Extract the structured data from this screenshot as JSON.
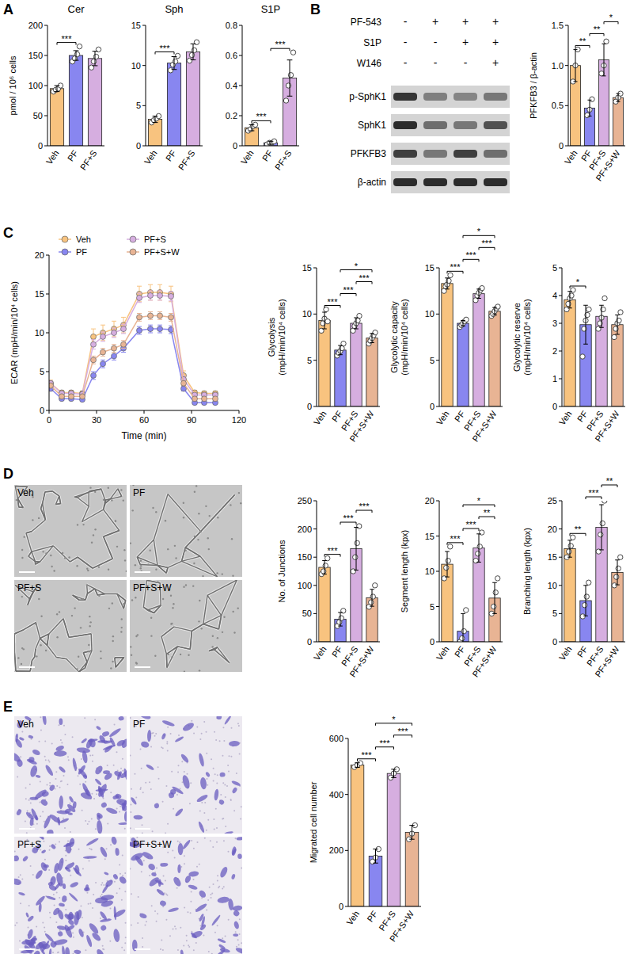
{
  "panel_labels": [
    "A",
    "B",
    "C",
    "D",
    "E"
  ],
  "blot": {
    "treatments": [
      {
        "name": "PF-543",
        "signs": [
          "-",
          "+",
          "+",
          "+"
        ]
      },
      {
        "name": "S1P",
        "signs": [
          "-",
          "-",
          "+",
          "+"
        ]
      },
      {
        "name": "W146",
        "signs": [
          "-",
          "-",
          "-",
          "+"
        ]
      }
    ],
    "bands": [
      "p-SphK1",
      "SphK1",
      "PFKFB3",
      "β-actin"
    ]
  },
  "images": {
    "D": [
      "Veh",
      "PF",
      "PF+S",
      "PF+S+W"
    ],
    "E": [
      "Veh",
      "PF",
      "PF+S",
      "PF+S+W"
    ]
  },
  "chart_data": [
    {
      "type": "bar",
      "title": "Cer",
      "ylabel": "pmol / 10⁶ cells",
      "categories": [
        "Veh",
        "PF",
        "PF+S"
      ],
      "colors": [
        "#f8c37f",
        "#8886f0",
        "#d6aee0"
      ],
      "values": [
        95,
        150,
        145
      ],
      "errors": [
        5,
        8,
        12
      ],
      "points": [
        [
          90,
          93,
          95,
          100
        ],
        [
          140,
          145,
          152,
          165
        ],
        [
          130,
          140,
          148,
          160
        ]
      ],
      "ylim": [
        0,
        200
      ],
      "yticks": [
        0,
        50,
        100,
        150,
        200
      ],
      "grid": false,
      "annotations": [
        {
          "between": [
            "Veh",
            "PF"
          ],
          "text": "***"
        }
      ]
    },
    {
      "type": "bar",
      "title": "Sph",
      "categories": [
        "Veh",
        "PF",
        "PF+S"
      ],
      "colors": [
        "#f8c37f",
        "#8886f0",
        "#d6aee0"
      ],
      "values": [
        3.3,
        10.3,
        11.7
      ],
      "errors": [
        0.4,
        0.8,
        1.0
      ],
      "points": [
        [
          2.9,
          3.2,
          3.4,
          3.7
        ],
        [
          9.4,
          10.1,
          10.5,
          11.2
        ],
        [
          10.6,
          11.3,
          11.9,
          12.9
        ]
      ],
      "ylim": [
        0,
        15
      ],
      "yticks": [
        0,
        5,
        10,
        15
      ],
      "grid": false,
      "annotations": [
        {
          "between": [
            "Veh",
            "PF"
          ],
          "text": "***"
        }
      ]
    },
    {
      "type": "bar",
      "title": "S1P",
      "categories": [
        "Veh",
        "PF",
        "PF+S"
      ],
      "colors": [
        "#f8c37f",
        "#8886f0",
        "#d6aee0"
      ],
      "values": [
        0.12,
        0.02,
        0.45
      ],
      "errors": [
        0.02,
        0.01,
        0.12
      ],
      "points": [
        [
          0.1,
          0.11,
          0.13,
          0.14
        ],
        [
          0.01,
          0.02,
          0.02,
          0.03
        ],
        [
          0.3,
          0.4,
          0.47,
          0.62
        ]
      ],
      "ylim": [
        0,
        0.8
      ],
      "yticks": [
        0,
        0.2,
        0.4,
        0.6,
        0.8
      ],
      "grid": false,
      "annotations": [
        {
          "between": [
            "Veh",
            "PF"
          ],
          "text": "***"
        },
        {
          "between": [
            "PF",
            "PF+S"
          ],
          "text": "***"
        }
      ]
    },
    {
      "type": "bar",
      "ylabel": "PFKFB3 / β-actin",
      "categories": [
        "Veh",
        "PF",
        "PF+S",
        "PF+S+W"
      ],
      "colors": [
        "#f8c37f",
        "#8886f0",
        "#d6aee0",
        "#e8b494"
      ],
      "values": [
        1.0,
        0.47,
        1.07,
        0.6
      ],
      "errors": [
        0.2,
        0.1,
        0.2,
        0.05
      ],
      "points": [
        [
          0.8,
          1.0,
          1.2
        ],
        [
          0.38,
          0.45,
          0.58
        ],
        [
          0.9,
          1.0,
          1.3
        ],
        [
          0.55,
          0.6,
          0.65
        ]
      ],
      "ylim": [
        0,
        1.5
      ],
      "yticks": [
        0,
        0.5,
        {
          "value": 1,
          "label": "1.0"
        },
        1.5
      ],
      "grid": false,
      "annotations": [
        {
          "between": [
            "Veh",
            "PF"
          ],
          "text": "**"
        },
        {
          "between": [
            "PF",
            "PF+S"
          ],
          "text": "**"
        },
        {
          "between": [
            "PF+S",
            "PF+S+W"
          ],
          "text": "*"
        }
      ]
    },
    {
      "type": "line",
      "ylabel": "ECAR (mpH/min/10⁴ cells)",
      "xlabel": "Time (min)",
      "x": [
        1,
        8,
        14,
        21,
        28,
        34,
        41,
        47,
        57,
        64,
        70,
        77,
        85,
        92,
        98,
        105
      ],
      "xlim": [
        0,
        120
      ],
      "xticks": [
        0,
        30,
        60,
        90,
        120
      ],
      "ylim": [
        0,
        20
      ],
      "yticks": [
        0,
        5,
        10,
        15,
        20
      ],
      "grid": false,
      "legend": "top",
      "series": [
        {
          "name": "Veh",
          "color": "#f8c37f",
          "marker": "circle",
          "values": [
            3.5,
            2.3,
            2.3,
            2.2,
            9.5,
            10,
            10.5,
            11,
            15,
            15.2,
            15.2,
            15,
            4.5,
            2.3,
            2.2,
            2.2
          ],
          "errors": [
            0.4,
            0.3,
            0.3,
            0.3,
            1.0,
            1.0,
            1.0,
            1.0,
            1.0,
            1.0,
            1.0,
            1.0,
            0.6,
            0.3,
            0.3,
            0.3
          ]
        },
        {
          "name": "PF",
          "color": "#8886f0",
          "marker": "circle",
          "values": [
            2.8,
            1.5,
            1.5,
            1.4,
            4.5,
            6,
            7,
            8,
            10.3,
            10.5,
            10.5,
            10.4,
            2.8,
            1,
            1,
            1
          ],
          "errors": [
            0.3,
            0.2,
            0.2,
            0.2,
            0.5,
            0.5,
            0.5,
            0.5,
            0.5,
            0.5,
            0.5,
            0.5,
            0.3,
            0.2,
            0.2,
            0.2
          ]
        },
        {
          "name": "PF+S",
          "color": "#d6aee0",
          "marker": "circle",
          "values": [
            3.5,
            2.2,
            2.2,
            2.1,
            8.5,
            9.5,
            10,
            10.5,
            14.5,
            14.8,
            14.8,
            14.7,
            4,
            2,
            2,
            2
          ],
          "errors": [
            0.3,
            0.2,
            0.2,
            0.2,
            0.6,
            0.6,
            0.6,
            0.6,
            0.6,
            0.6,
            0.6,
            0.6,
            0.4,
            0.2,
            0.2,
            0.2
          ]
        },
        {
          "name": "PF+S+W",
          "color": "#e8b494",
          "marker": "circle",
          "values": [
            3.2,
            1.8,
            1.8,
            1.8,
            6.5,
            7.5,
            8,
            8.5,
            12,
            12.2,
            12.2,
            12,
            3.5,
            1.5,
            1.5,
            1.5
          ],
          "errors": [
            0.3,
            0.2,
            0.2,
            0.2,
            0.5,
            0.5,
            0.5,
            0.5,
            0.5,
            0.5,
            0.5,
            0.5,
            0.3,
            0.2,
            0.2,
            0.2
          ]
        }
      ]
    },
    {
      "type": "bar",
      "ylabel": [
        "Glycolysis",
        "(mpH/min/10⁴ cells)"
      ],
      "categories": [
        "Veh",
        "PF",
        "PF+S",
        "PF+S+W"
      ],
      "colors": [
        "#f8c37f",
        "#8886f0",
        "#d6aee0",
        "#e8b494"
      ],
      "values": [
        9.3,
        6.1,
        9.0,
        7.4
      ],
      "errors": [
        0.9,
        0.5,
        0.6,
        0.5
      ],
      "points": [
        [
          8.2,
          9,
          9.5,
          10.5,
          9.2
        ],
        [
          5.5,
          5.8,
          6,
          6.3,
          6.8
        ],
        [
          8.2,
          8.7,
          9,
          9.3,
          9.8
        ],
        [
          6.8,
          7.1,
          7.4,
          7.7,
          8
        ]
      ],
      "ylim": [
        0,
        15
      ],
      "yticks": [
        0,
        5,
        10,
        15
      ],
      "grid": false,
      "annotations": [
        {
          "between": [
            "Veh",
            "PF"
          ],
          "text": "***"
        },
        {
          "between": [
            "PF",
            "PF+S"
          ],
          "text": "***"
        },
        {
          "between": [
            "PF+S",
            "PF+S+W"
          ],
          "text": "***"
        },
        {
          "between": [
            "PF",
            "PF+S+W"
          ],
          "text": "*"
        }
      ]
    },
    {
      "type": "bar",
      "ylabel": [
        "Glycolytic capacity",
        "(mpH/min/10⁴ cells)"
      ],
      "categories": [
        "Veh",
        "PF",
        "PF+S",
        "PF+S+W"
      ],
      "colors": [
        "#f8c37f",
        "#8886f0",
        "#d6aee0",
        "#e8b494"
      ],
      "values": [
        13.3,
        9.0,
        12.2,
        10.3
      ],
      "errors": [
        0.6,
        0.3,
        0.5,
        0.4
      ],
      "points": [
        [
          12.5,
          13,
          13.2,
          13.6,
          14.2
        ],
        [
          8.6,
          8.8,
          9,
          9.2,
          9.4
        ],
        [
          11.5,
          12,
          12.3,
          12.6,
          12.8
        ],
        [
          9.8,
          10,
          10.3,
          10.6,
          10.8
        ]
      ],
      "ylim": [
        0,
        15
      ],
      "yticks": [
        0,
        5,
        10,
        15
      ],
      "grid": false,
      "annotations": [
        {
          "between": [
            "Veh",
            "PF"
          ],
          "text": "***"
        },
        {
          "between": [
            "PF",
            "PF+S"
          ],
          "text": "***"
        },
        {
          "between": [
            "PF+S",
            "PF+S+W"
          ],
          "text": "***"
        },
        {
          "between": [
            "PF",
            "PF+S+W"
          ],
          "text": "*"
        }
      ]
    },
    {
      "type": "bar",
      "ylabel": [
        "Glycolytic reserve",
        "(mpH/min/10⁴ cells)"
      ],
      "categories": [
        "Veh",
        "PF",
        "PF+S",
        "PF+S+W"
      ],
      "colors": [
        "#f8c37f",
        "#8886f0",
        "#d6aee0",
        "#e8b494"
      ],
      "values": [
        3.85,
        2.95,
        3.25,
        2.95
      ],
      "errors": [
        0.3,
        0.7,
        0.4,
        0.35
      ],
      "points": [
        [
          3.5,
          3.7,
          3.9,
          4.0,
          4.2
        ],
        [
          1.8,
          2.8,
          3.1,
          3.3,
          3.5
        ],
        [
          2.8,
          3,
          3.2,
          3.5,
          3.9
        ],
        [
          2.5,
          2.8,
          3,
          3.1,
          3.4
        ]
      ],
      "ylim": [
        0,
        5
      ],
      "yticks": [
        0,
        1,
        2,
        3,
        4,
        5
      ],
      "grid": false,
      "annotations": [
        {
          "between": [
            "Veh",
            "PF"
          ],
          "text": "*"
        }
      ]
    },
    {
      "type": "bar",
      "ylabel": "No. of Junctions",
      "categories": [
        "Veh",
        "PF",
        "PF+S",
        "PF+S+W"
      ],
      "colors": [
        "#f8c37f",
        "#8886f0",
        "#d6aee0",
        "#e8b494"
      ],
      "values": [
        132,
        40,
        165,
        78
      ],
      "errors": [
        12,
        12,
        38,
        15
      ],
      "points": [
        [
          120,
          125,
          135,
          148
        ],
        [
          28,
          35,
          42,
          55
        ],
        [
          125,
          150,
          175,
          205
        ],
        [
          62,
          70,
          80,
          100
        ]
      ],
      "ylim": [
        0,
        250
      ],
      "yticks": [
        0,
        50,
        100,
        150,
        200,
        250
      ],
      "grid": false,
      "annotations": [
        {
          "between": [
            "Veh",
            "PF"
          ],
          "text": "***"
        },
        {
          "between": [
            "PF",
            "PF+S"
          ],
          "text": "***"
        },
        {
          "between": [
            "PF+S",
            "PF+S+W"
          ],
          "text": "***"
        }
      ]
    },
    {
      "type": "bar",
      "ylabel": "Segment length (kpx)",
      "categories": [
        "Veh",
        "PF",
        "PF+S",
        "PF+S+W"
      ],
      "colors": [
        "#f8c37f",
        "#8886f0",
        "#d6aee0",
        "#e8b494"
      ],
      "values": [
        11,
        1.5,
        13.3,
        6.2
      ],
      "errors": [
        1.8,
        2.5,
        2,
        2.2
      ],
      "points": [
        [
          9,
          10.5,
          11.5,
          13.5
        ],
        [
          0,
          0.5,
          1.5,
          4.5
        ],
        [
          11.5,
          12.5,
          13.5,
          15.5
        ],
        [
          4,
          5,
          7,
          9
        ]
      ],
      "ylim": [
        0,
        20
      ],
      "yticks": [
        0,
        5,
        10,
        15,
        20
      ],
      "grid": false,
      "annotations": [
        {
          "between": [
            "Veh",
            "PF"
          ],
          "text": "***"
        },
        {
          "between": [
            "PF",
            "PF+S"
          ],
          "text": "***"
        },
        {
          "between": [
            "PF+S",
            "PF+S+W"
          ],
          "text": "**"
        },
        {
          "between": [
            "PF",
            "PF+S+W"
          ],
          "text": "*"
        }
      ]
    },
    {
      "type": "bar",
      "ylabel": "Branching length (kpx)",
      "categories": [
        "Veh",
        "PF",
        "PF+S",
        "PF+S+W"
      ],
      "colors": [
        "#f8c37f",
        "#8886f0",
        "#d6aee0",
        "#e8b494"
      ],
      "values": [
        16.5,
        7.3,
        20.3,
        12.3
      ],
      "errors": [
        1.5,
        2.7,
        4,
        2.2
      ],
      "points": [
        [
          15,
          16,
          17,
          18.5
        ],
        [
          4.5,
          6.5,
          8,
          10.5
        ],
        [
          16,
          19,
          21,
          25
        ],
        [
          10,
          11.5,
          13,
          15
        ]
      ],
      "ylim": [
        0,
        25
      ],
      "yticks": [
        0,
        5,
        10,
        15,
        20,
        25
      ],
      "grid": false,
      "annotations": [
        {
          "between": [
            "Veh",
            "PF"
          ],
          "text": "**"
        },
        {
          "between": [
            "PF",
            "PF+S"
          ],
          "text": "***"
        },
        {
          "between": [
            "PF+S",
            "PF+S+W"
          ],
          "text": "**"
        }
      ]
    },
    {
      "type": "bar",
      "ylabel": "Migrated cell number",
      "categories": [
        "Veh",
        "PF",
        "PF+S",
        "PF+S+W"
      ],
      "colors": [
        "#f8c37f",
        "#8886f0",
        "#d6aee0",
        "#e8b494"
      ],
      "values": [
        505,
        180,
        475,
        265
      ],
      "errors": [
        8,
        25,
        15,
        25
      ],
      "points": [
        [
          498,
          505,
          512
        ],
        [
          160,
          175,
          205
        ],
        [
          460,
          475,
          490
        ],
        [
          240,
          260,
          290
        ]
      ],
      "ylim": [
        0,
        600
      ],
      "yticks": [
        0,
        200,
        400,
        600
      ],
      "grid": false,
      "annotations": [
        {
          "between": [
            "Veh",
            "PF"
          ],
          "text": "***"
        },
        {
          "between": [
            "PF",
            "PF+S"
          ],
          "text": "***"
        },
        {
          "between": [
            "PF+S",
            "PF+S+W"
          ],
          "text": "***"
        },
        {
          "between": [
            "PF",
            "PF+S+W"
          ],
          "text": "*"
        }
      ]
    }
  ]
}
